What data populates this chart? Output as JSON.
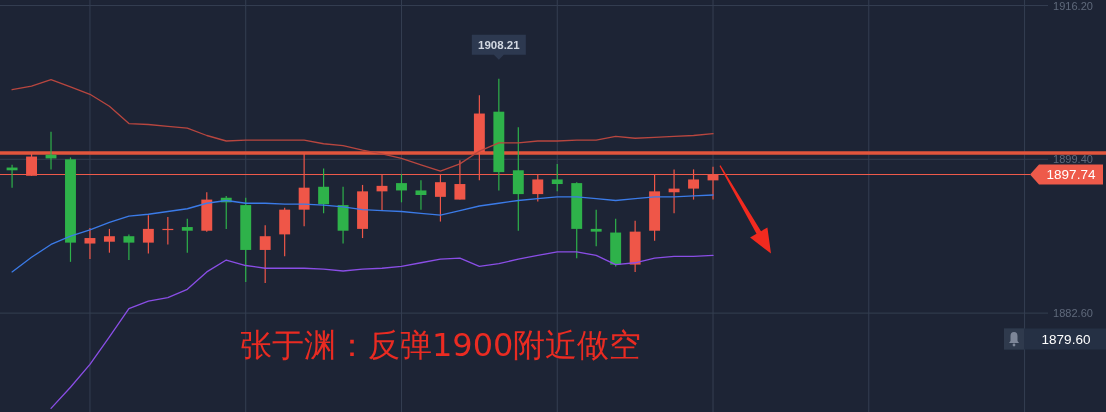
{
  "chart_data": {
    "type": "candlestick",
    "categories": [
      null,
      null,
      null,
      null,
      null,
      null,
      null,
      null,
      null,
      null,
      null,
      null,
      null,
      null,
      null,
      null,
      null,
      null,
      null,
      null,
      null,
      null,
      null,
      null,
      null,
      null,
      null,
      null,
      null,
      null,
      null,
      null,
      null,
      null,
      null,
      null,
      null
    ],
    "ohlc": [
      [
        1898.5,
        1898.8,
        1896.3,
        1898.2
      ],
      [
        1897.6,
        1900.0,
        1897.6,
        1899.7
      ],
      [
        1899.9,
        1902.4,
        1898.3,
        1899.5
      ],
      [
        1899.4,
        1899.6,
        1888.2,
        1890.3
      ],
      [
        1890.2,
        1891.9,
        1888.5,
        1890.8
      ],
      [
        1890.4,
        1891.8,
        1889.2,
        1891.0
      ],
      [
        1891.0,
        1891.2,
        1888.4,
        1890.3
      ],
      [
        1890.3,
        1893.3,
        1889.1,
        1891.8
      ],
      [
        1891.7,
        1893.1,
        1890.1,
        1891.8
      ],
      [
        1892.0,
        1892.9,
        1889.2,
        1891.6
      ],
      [
        1891.6,
        1895.8,
        1891.5,
        1895.0
      ],
      [
        1895.2,
        1895.4,
        1891.8,
        1894.7
      ],
      [
        1894.4,
        1895.2,
        1886.0,
        1889.5
      ],
      [
        1889.5,
        1892.2,
        1885.9,
        1891.0
      ],
      [
        1891.2,
        1894.1,
        1888.8,
        1893.9
      ],
      [
        1893.9,
        1900.0,
        1892.1,
        1896.3
      ],
      [
        1896.4,
        1898.4,
        1893.5,
        1894.5
      ],
      [
        1894.4,
        1896.4,
        1890.2,
        1891.6
      ],
      [
        1891.8,
        1896.6,
        1890.8,
        1895.9
      ],
      [
        1895.9,
        1897.7,
        1893.8,
        1896.5
      ],
      [
        1896.8,
        1897.8,
        1894.7,
        1896.0
      ],
      [
        1896.0,
        1897.1,
        1893.9,
        1895.5
      ],
      [
        1895.3,
        1897.8,
        1892.6,
        1896.9
      ],
      [
        1895.0,
        1899.3,
        1895.0,
        1896.7
      ],
      [
        1900.2,
        1906.4,
        1897.1,
        1904.4
      ],
      [
        1904.6,
        1908.21,
        1896.0,
        1898.0
      ],
      [
        1898.2,
        1902.9,
        1891.6,
        1895.6
      ],
      [
        1895.6,
        1897.7,
        1894.8,
        1897.2
      ],
      [
        1897.2,
        1898.9,
        1895.9,
        1896.7
      ],
      [
        1896.8,
        1896.9,
        1888.6,
        1891.8
      ],
      [
        1891.8,
        1893.9,
        1889.9,
        1891.5
      ],
      [
        1891.4,
        1892.9,
        1887.7,
        1887.9
      ],
      [
        1887.9,
        1892.7,
        1887.1,
        1891.5
      ],
      [
        1891.6,
        1897.7,
        1890.5,
        1895.9
      ],
      [
        1895.8,
        1898.3,
        1893.5,
        1896.2
      ],
      [
        1896.2,
        1898.3,
        1895.0,
        1897.2
      ],
      [
        1897.1,
        1898.6,
        1895.0,
        1897.74
      ]
    ],
    "colors": [
      "#2eb24a",
      "#ef5648",
      "#2eb24a",
      "#2eb24a",
      "#ef5648",
      "#ef5648",
      "#2eb24a",
      "#ef5648",
      "#ef5648",
      "#2eb24a",
      "#ef5648",
      "#2eb24a",
      "#2eb24a",
      "#ef5648",
      "#ef5648",
      "#ef5648",
      "#2eb24a",
      "#2eb24a",
      "#ef5648",
      "#ef5648",
      "#2eb24a",
      "#2eb24a",
      "#ef5648",
      "#ef5648",
      "#ef5648",
      "#2eb24a",
      "#2eb24a",
      "#ef5648",
      "#2eb24a",
      "#2eb24a",
      "#2eb24a",
      "#2eb24a",
      "#ef5648",
      "#ef5648",
      "#ef5648",
      "#ef5648",
      "#ef5648"
    ],
    "series": [
      {
        "type": "line",
        "color": "#b8463f",
        "values": [
          1907.0,
          1907.4,
          1908.1,
          1907.3,
          1906.5,
          1905.2,
          1903.3,
          1903.2,
          1903.0,
          1902.8,
          1902.0,
          1901.4,
          1901.5,
          1901.5,
          1901.5,
          1901.5,
          1901.1,
          1900.9,
          1900.4,
          1900.0,
          1899.5,
          1898.8,
          1898.1,
          1898.9,
          1900.3,
          1901.2,
          1901.2,
          1901.4,
          1901.4,
          1901.5,
          1901.5,
          1901.9,
          1901.7,
          1901.8,
          1901.9,
          1902.0,
          1902.2
        ]
      },
      {
        "type": "line",
        "color": "#3b7be8",
        "values": [
          1887.1,
          1888.7,
          1890.1,
          1891.0,
          1891.7,
          1892.5,
          1893.2,
          1893.4,
          1893.7,
          1894.0,
          1894.6,
          1894.9,
          1894.6,
          1894.6,
          1894.5,
          1894.5,
          1894.4,
          1894.2,
          1893.9,
          1893.8,
          1893.7,
          1893.5,
          1893.3,
          1893.8,
          1894.3,
          1894.6,
          1894.9,
          1895.1,
          1895.3,
          1895.3,
          1895.1,
          1894.9,
          1895.1,
          1895.3,
          1895.3,
          1895.4,
          1895.5
        ]
      },
      {
        "type": "line",
        "color": "#8a4ee6",
        "values": [
          null,
          null,
          1872.2,
          1874.5,
          1877.0,
          1880.0,
          1883.1,
          1883.9,
          1884.3,
          1885.2,
          1887.1,
          1888.4,
          1887.8,
          1887.5,
          1887.5,
          1887.5,
          1887.4,
          1887.2,
          1887.4,
          1887.5,
          1887.7,
          1888.1,
          1888.5,
          1888.6,
          1887.7,
          1888.0,
          1888.5,
          1888.9,
          1889.3,
          1889.3,
          1888.9,
          1887.9,
          1888.1,
          1888.6,
          1888.8,
          1888.8,
          1888.9
        ]
      }
    ],
    "ylim": [
      1871.8,
      1916.8
    ],
    "yticks": [
      {
        "value": 1882.6,
        "label": "1882.60"
      },
      {
        "value": 1899.4,
        "label": "1899.40"
      },
      {
        "value": 1916.2,
        "label": "1916.20"
      }
    ],
    "grid": true,
    "tick_labels": "y",
    "ref_lines": [
      {
        "axis": "y",
        "value": 1900.1,
        "color": "#e2553c"
      },
      {
        "axis": "y",
        "value": 1897.74,
        "label": "1897.74",
        "color": "#ee5a4a"
      }
    ],
    "annotations": [
      "张于渊：反弹1900附近做空",
      {
        "text": "1908.21",
        "y": 1908.21
      },
      "1879.60"
    ]
  }
}
